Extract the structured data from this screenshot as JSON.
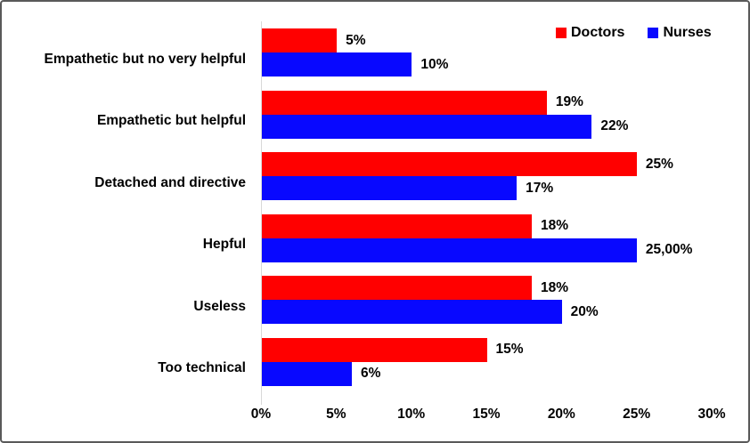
{
  "colors": {
    "doctors": "#ff0000",
    "nurses": "#0808ff",
    "axis_line": "#d9d9d9",
    "frame_border": "#595959",
    "text": "#000000"
  },
  "legend": {
    "items": [
      {
        "label": "Doctors",
        "color": "#ff0000"
      },
      {
        "label": "Nurses",
        "color": "#0808ff"
      }
    ],
    "position": "top-right"
  },
  "chart_data": {
    "type": "bar",
    "orientation": "horizontal",
    "title": "",
    "xlabel": "",
    "ylabel": "",
    "xlim": [
      0,
      30
    ],
    "xticks": [
      0,
      5,
      10,
      15,
      20,
      25,
      30
    ],
    "xtick_labels": [
      "0%",
      "5%",
      "10%",
      "15%",
      "20%",
      "25%",
      "30%"
    ],
    "grid": false,
    "legend_position": "top-right",
    "categories": [
      "Empathetic but no very helpful",
      "Empathetic but helpful",
      "Detached and directive",
      "Hepful",
      "Useless",
      "Too technical"
    ],
    "series": [
      {
        "name": "Doctors",
        "color": "#ff0000",
        "values": [
          5,
          19,
          25,
          18,
          18,
          15
        ],
        "data_labels": [
          "5%",
          "19%",
          "25%",
          "18%",
          "18%",
          "15%"
        ]
      },
      {
        "name": "Nurses",
        "color": "#0808ff",
        "values": [
          10,
          22,
          17,
          25,
          20,
          6
        ],
        "data_labels": [
          "10%",
          "22%",
          "17%",
          "25,00%",
          "20%",
          "6%"
        ]
      }
    ]
  }
}
